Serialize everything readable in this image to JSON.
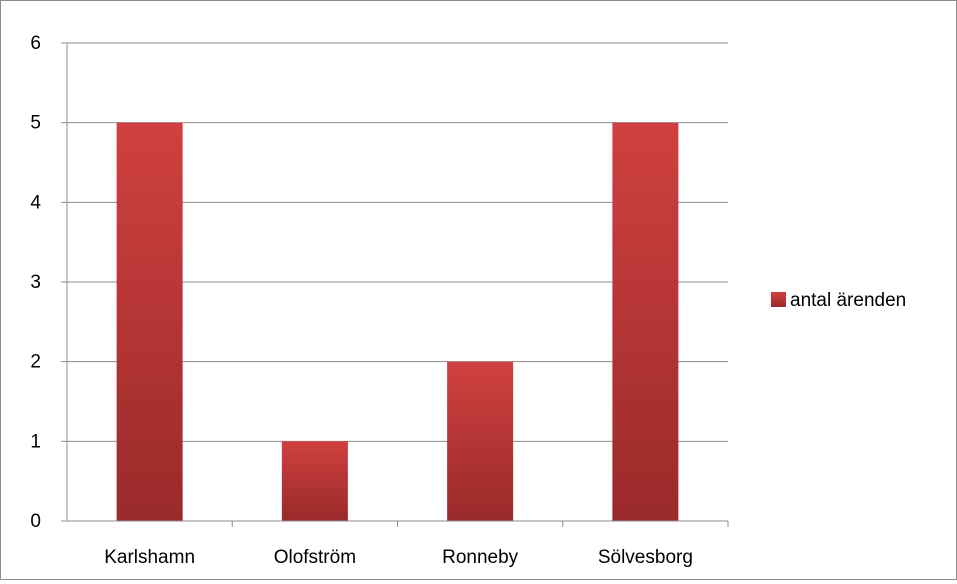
{
  "chart_data": {
    "type": "bar",
    "categories": [
      "Karlshamn",
      "Olofström",
      "Ronneby",
      "Sölvesborg"
    ],
    "series": [
      {
        "name": "antal ärenden",
        "values": [
          5,
          1,
          2,
          5
        ],
        "color": "#c0383a"
      }
    ],
    "ylim": [
      0,
      6
    ],
    "yticks": [
      "0",
      "1",
      "2",
      "3",
      "4",
      "5",
      "6"
    ],
    "grid": true,
    "legend_position": "right"
  },
  "colors": {
    "bar_top": "#d04040",
    "bar_bottom": "#9a2a2a",
    "grid": "#8c8c8c"
  }
}
